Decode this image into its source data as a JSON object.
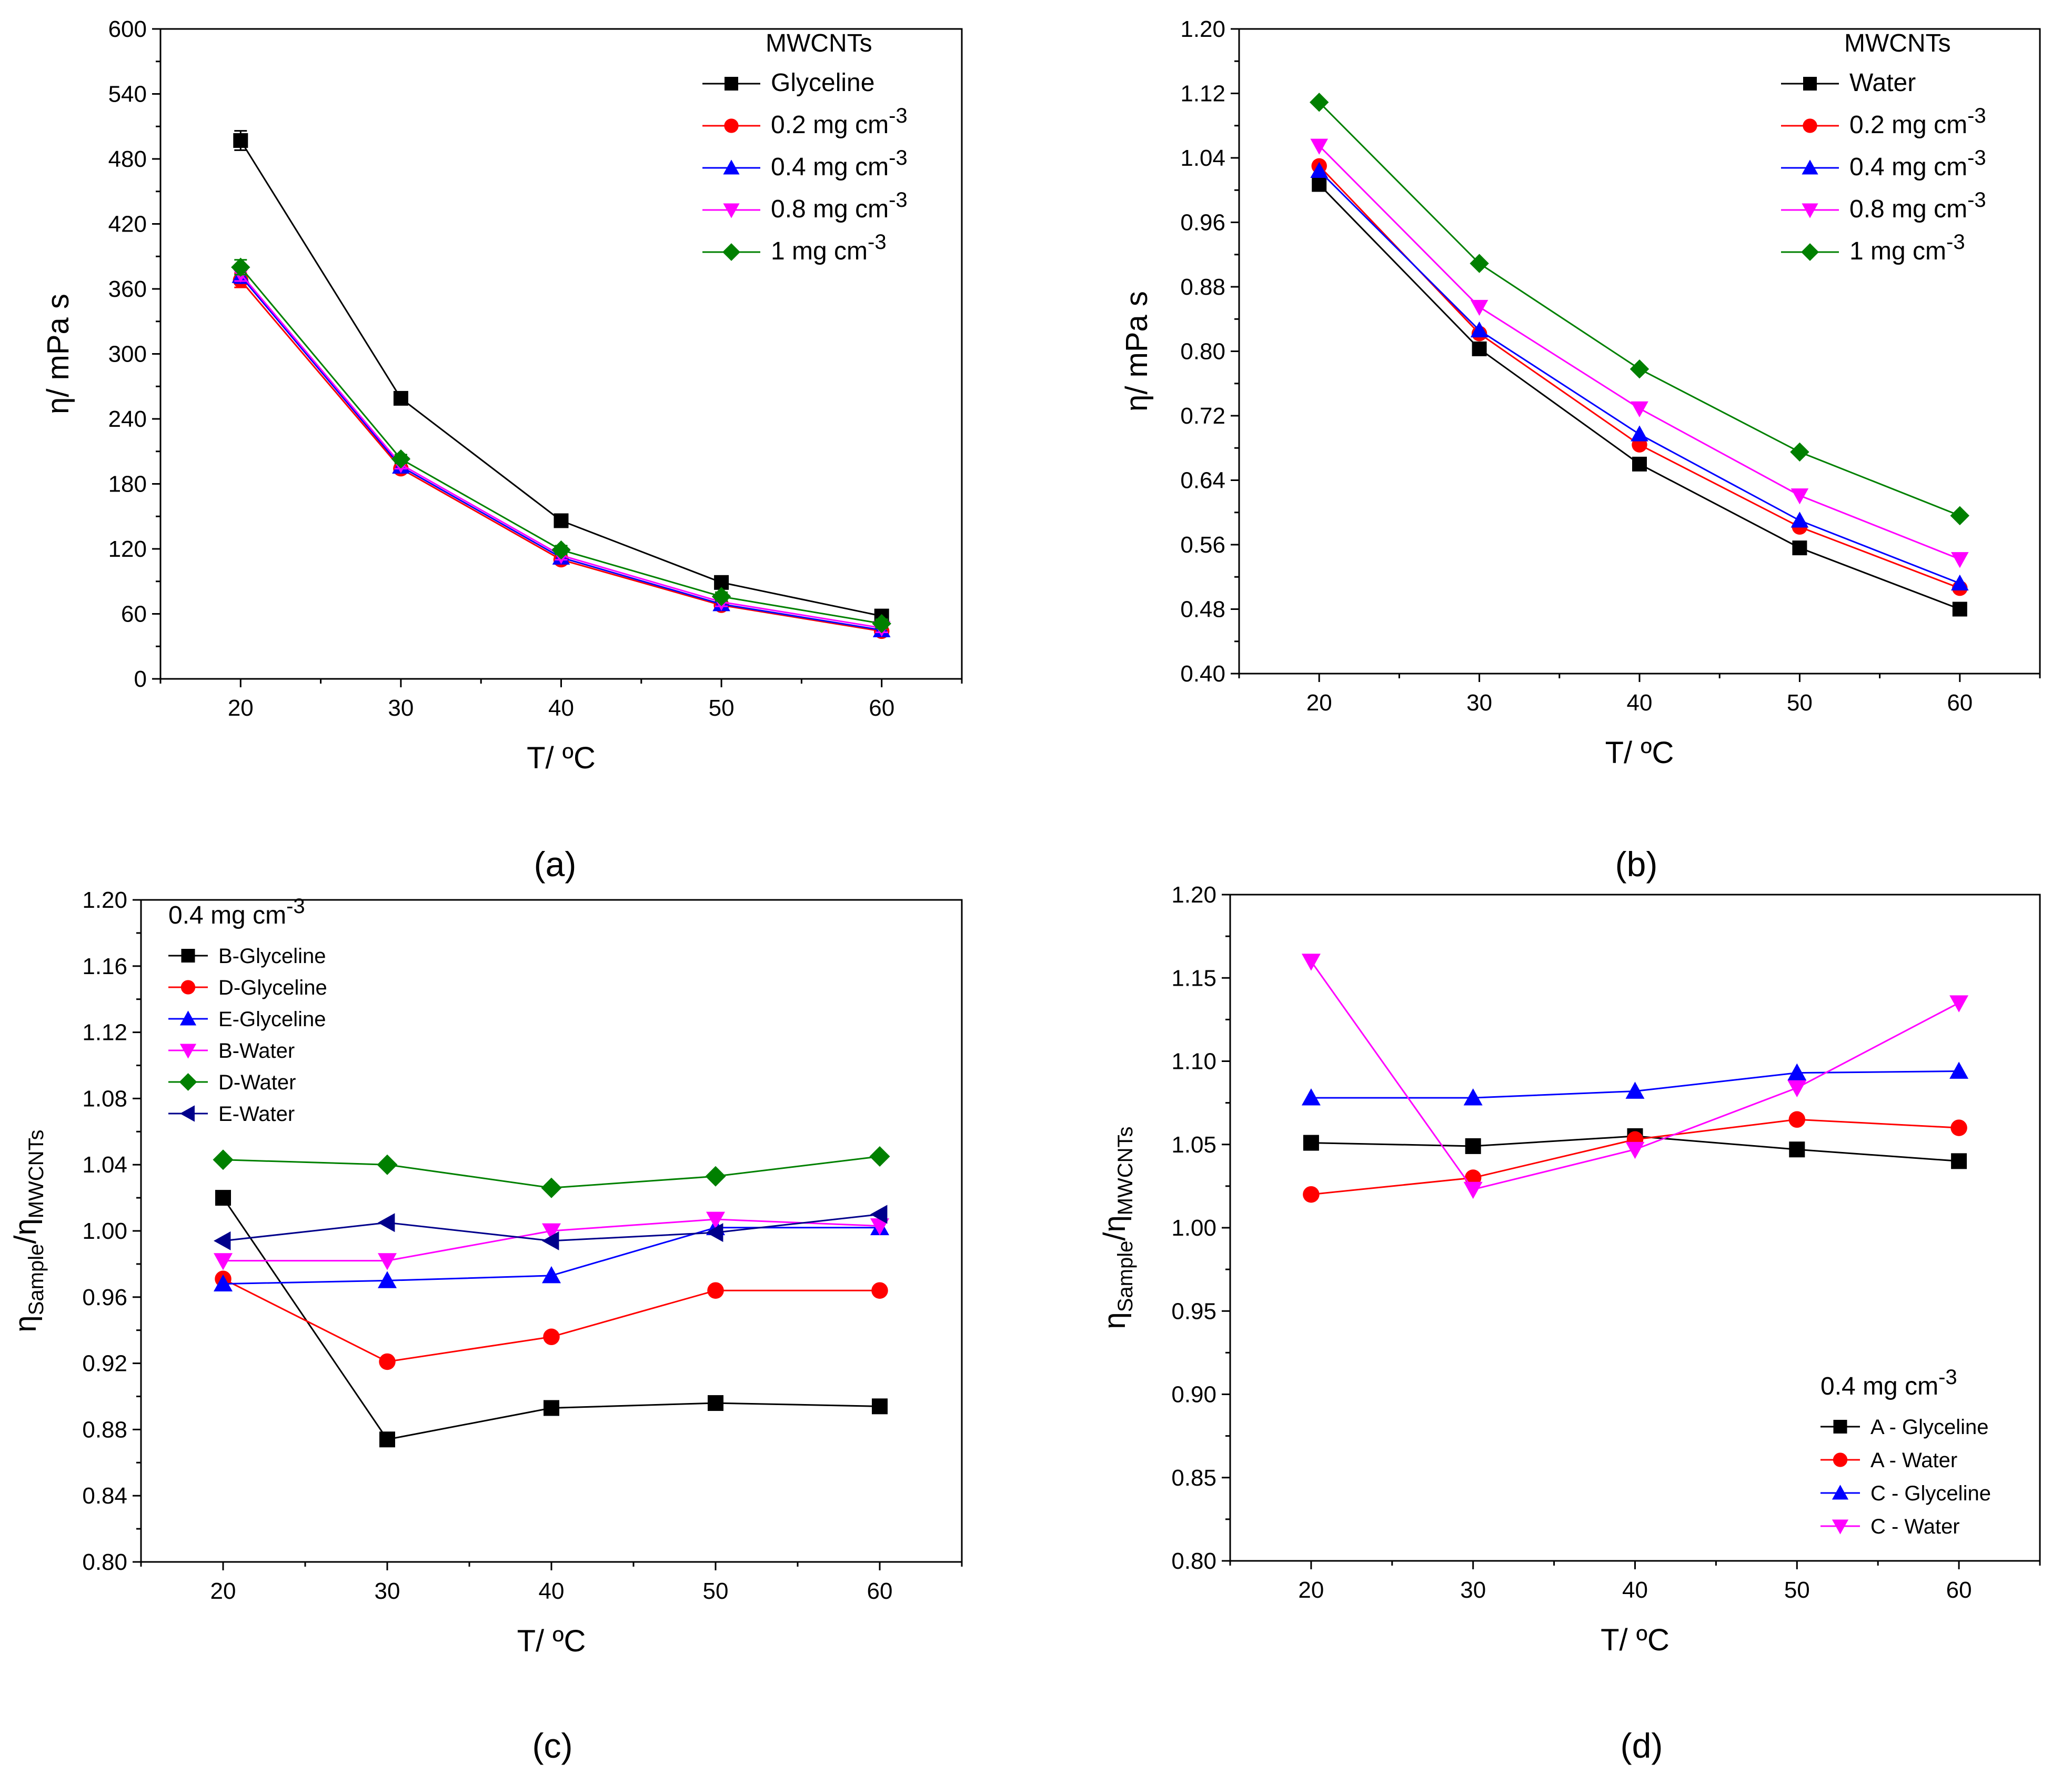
{
  "chart_data": [
    {
      "id": "a",
      "type": "line",
      "caption": "(a)",
      "xlabel": "T/ ºC",
      "ylabel": "η/ mPa s",
      "x": [
        20,
        30,
        40,
        50,
        60
      ],
      "xlim": [
        15,
        65
      ],
      "ylim": [
        0,
        600
      ],
      "yticks": [
        "0",
        "60",
        "120",
        "180",
        "240",
        "300",
        "360",
        "420",
        "480",
        "540",
        "600"
      ],
      "legend_title": "MWCNTs",
      "legend_position": "top-right",
      "series": [
        {
          "name": "Glyceline",
          "sup": "",
          "color": "#000000",
          "marker": "square",
          "values": [
            497,
            259,
            146,
            89,
            58
          ]
        },
        {
          "name": "0.2 mg cm",
          "sup": "-3",
          "color": "#ff0000",
          "marker": "circle",
          "values": [
            368,
            194,
            110,
            68,
            44
          ]
        },
        {
          "name": "0.4 mg cm",
          "sup": "-3",
          "color": "#0000ff",
          "marker": "triangle-up",
          "values": [
            372,
            196,
            112,
            69,
            45
          ]
        },
        {
          "name": "0.8 mg cm",
          "sup": "-3",
          "color": "#ff00ff",
          "marker": "triangle-down",
          "values": [
            374,
            198,
            114,
            71,
            47
          ]
        },
        {
          "name": "1 mg cm",
          "sup": "-3",
          "color": "#008000",
          "marker": "diamond",
          "values": [
            380,
            203,
            119,
            76,
            51
          ]
        }
      ]
    },
    {
      "id": "b",
      "type": "line",
      "caption": "(b)",
      "xlabel": "T/ ºC",
      "ylabel": "η/ mPa s",
      "x": [
        20,
        30,
        40,
        50,
        60
      ],
      "xlim": [
        15,
        65
      ],
      "ylim": [
        0.4,
        1.2
      ],
      "yticks": [
        "0.40",
        "0.48",
        "0.56",
        "0.64",
        "0.72",
        "0.80",
        "0.88",
        "0.96",
        "1.04",
        "1.12",
        "1.20"
      ],
      "legend_title": "MWCNTs",
      "legend_position": "top-right",
      "series": [
        {
          "name": "Water",
          "sup": "",
          "color": "#000000",
          "marker": "square",
          "values": [
            1.007,
            0.803,
            0.66,
            0.556,
            0.48
          ]
        },
        {
          "name": "0.2 mg cm",
          "sup": "-3",
          "color": "#ff0000",
          "marker": "circle",
          "values": [
            1.03,
            0.822,
            0.684,
            0.582,
            0.506
          ]
        },
        {
          "name": "0.4 mg cm",
          "sup": "-3",
          "color": "#0000ff",
          "marker": "triangle-up",
          "values": [
            1.024,
            0.826,
            0.697,
            0.59,
            0.512
          ]
        },
        {
          "name": "0.8 mg cm",
          "sup": "-3",
          "color": "#ff00ff",
          "marker": "triangle-down",
          "values": [
            1.055,
            0.855,
            0.729,
            0.621,
            0.542
          ]
        },
        {
          "name": "1 mg cm",
          "sup": "-3",
          "color": "#008000",
          "marker": "diamond",
          "values": [
            1.109,
            0.909,
            0.778,
            0.675,
            0.596
          ]
        }
      ]
    },
    {
      "id": "c",
      "type": "line",
      "caption": "(c)",
      "xlabel": "T/ ºC",
      "ylabel": "η",
      "ylabel_sub1": "Sample",
      "ylabel_sep": "/η",
      "ylabel_sub2": "MWCNTs",
      "x": [
        20,
        30,
        40,
        50,
        60
      ],
      "xlim": [
        15,
        65
      ],
      "ylim": [
        0.8,
        1.2
      ],
      "yticks": [
        "0.80",
        "0.84",
        "0.88",
        "0.92",
        "0.96",
        "1.00",
        "1.04",
        "1.08",
        "1.12",
        "1.16",
        "1.20"
      ],
      "legend_title": "0.4 mg cm",
      "legend_title_sup": "-3",
      "legend_position": "top-left",
      "series": [
        {
          "name": "B-Glyceline",
          "sup": "",
          "color": "#000000",
          "marker": "square",
          "values": [
            1.02,
            0.874,
            0.893,
            0.896,
            0.894
          ]
        },
        {
          "name": "D-Glyceline",
          "sup": "",
          "color": "#ff0000",
          "marker": "circle",
          "values": [
            0.971,
            0.921,
            0.936,
            0.964,
            0.964
          ]
        },
        {
          "name": "E-Glyceline",
          "sup": "",
          "color": "#0000ff",
          "marker": "triangle-up",
          "values": [
            0.968,
            0.97,
            0.973,
            1.002,
            1.002
          ]
        },
        {
          "name": "B-Water",
          "sup": "",
          "color": "#ff00ff",
          "marker": "triangle-down",
          "values": [
            0.982,
            0.982,
            1.0,
            1.007,
            1.003
          ]
        },
        {
          "name": "D-Water",
          "sup": "",
          "color": "#008000",
          "marker": "diamond",
          "values": [
            1.043,
            1.04,
            1.026,
            1.033,
            1.045
          ]
        },
        {
          "name": "E-Water",
          "sup": "",
          "color": "#00008b",
          "marker": "triangle-left",
          "values": [
            0.994,
            1.005,
            0.994,
            0.999,
            1.01
          ]
        }
      ]
    },
    {
      "id": "d",
      "type": "line",
      "caption": "(d)",
      "xlabel": "T/ ºC",
      "ylabel": "η",
      "ylabel_sub1": "Sample",
      "ylabel_sep": "/η",
      "ylabel_sub2": "MWCNTs",
      "x": [
        20,
        30,
        40,
        50,
        60
      ],
      "xlim": [
        15,
        65
      ],
      "ylim": [
        0.8,
        1.2
      ],
      "yticks": [
        "0.80",
        "0.85",
        "0.90",
        "0.95",
        "1.00",
        "1.05",
        "1.10",
        "1.15",
        "1.20"
      ],
      "legend_title": "0.4 mg cm",
      "legend_title_sup": "-3",
      "legend_position": "bottom-right",
      "series": [
        {
          "name": "A - Glyceline",
          "sup": "",
          "color": "#000000",
          "marker": "square",
          "values": [
            1.051,
            1.049,
            1.055,
            1.047,
            1.04
          ]
        },
        {
          "name": "A - Water",
          "sup": "",
          "color": "#ff0000",
          "marker": "circle",
          "values": [
            1.02,
            1.03,
            1.053,
            1.065,
            1.06
          ]
        },
        {
          "name": "C - Glyceline",
          "sup": "",
          "color": "#0000ff",
          "marker": "triangle-up",
          "values": [
            1.078,
            1.078,
            1.082,
            1.093,
            1.094
          ]
        },
        {
          "name": "C - Water",
          "sup": "",
          "color": "#ff00ff",
          "marker": "triangle-down",
          "values": [
            1.16,
            1.023,
            1.047,
            1.084,
            1.135
          ]
        }
      ]
    }
  ]
}
